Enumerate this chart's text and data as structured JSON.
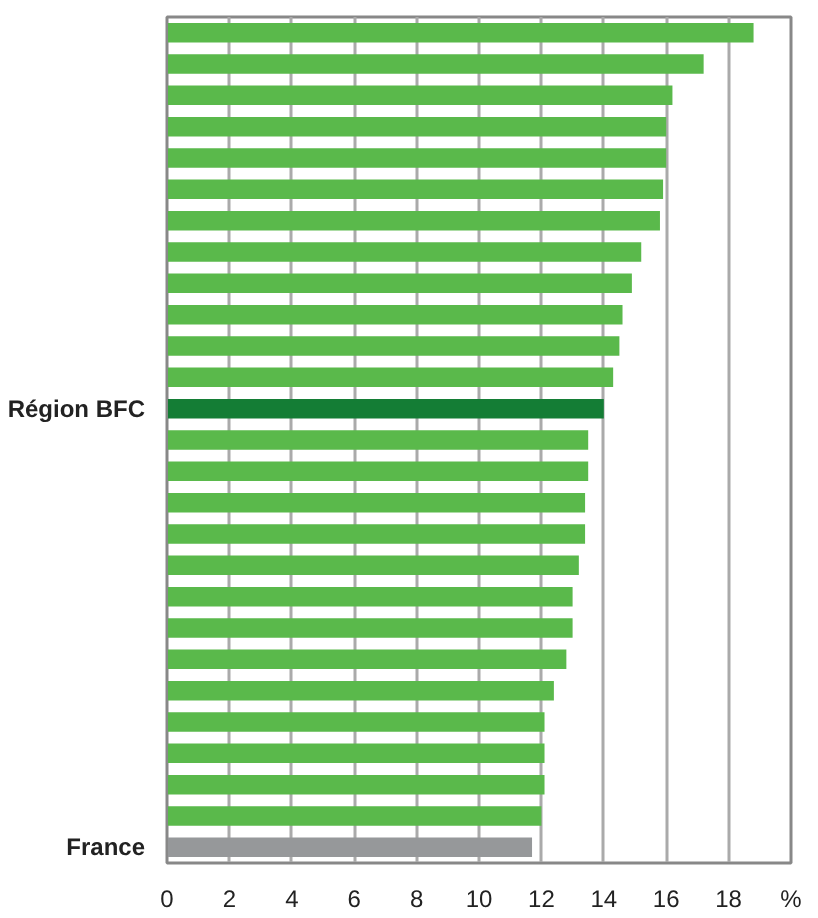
{
  "chart_data": {
    "type": "bar",
    "orientation": "horizontal",
    "categories": [
      null,
      null,
      null,
      null,
      null,
      null,
      null,
      null,
      null,
      null,
      null,
      null,
      "Région BFC",
      null,
      null,
      null,
      null,
      null,
      null,
      null,
      null,
      null,
      null,
      null,
      null,
      null,
      "France"
    ],
    "values": [
      18.8,
      17.2,
      16.2,
      16.0,
      16.0,
      15.9,
      15.8,
      15.2,
      14.9,
      14.6,
      14.5,
      14.3,
      14.0,
      13.5,
      13.5,
      13.4,
      13.4,
      13.2,
      13.0,
      13.0,
      12.8,
      12.4,
      12.1,
      12.1,
      12.1,
      12.0,
      11.7
    ],
    "colors": [
      "#5ab94b",
      "#5ab94b",
      "#5ab94b",
      "#5ab94b",
      "#5ab94b",
      "#5ab94b",
      "#5ab94b",
      "#5ab94b",
      "#5ab94b",
      "#5ab94b",
      "#5ab94b",
      "#5ab94b",
      "#147d35",
      "#5ab94b",
      "#5ab94b",
      "#5ab94b",
      "#5ab94b",
      "#5ab94b",
      "#5ab94b",
      "#5ab94b",
      "#5ab94b",
      "#5ab94b",
      "#5ab94b",
      "#5ab94b",
      "#5ab94b",
      "#5ab94b",
      "#96989a"
    ],
    "xlim": [
      0,
      20
    ],
    "xticks": [
      0,
      2,
      4,
      6,
      8,
      10,
      12,
      14,
      16,
      18,
      {
        "value": 20,
        "label": "%"
      }
    ],
    "grid": "x"
  }
}
